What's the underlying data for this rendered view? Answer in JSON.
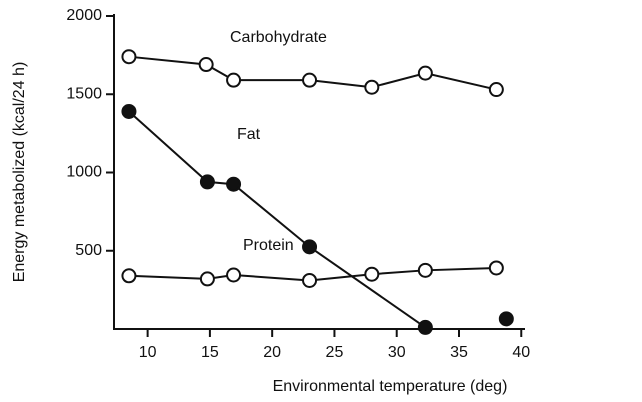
{
  "chart_data": {
    "type": "line",
    "xlabel": "Environmental temperature (deg)",
    "ylabel": "Energy metabolized (kcal/24 h)",
    "xlim": [
      7.3,
      40.3
    ],
    "xticks": [
      10,
      15,
      20,
      25,
      30,
      35,
      40
    ],
    "ylim": [
      0,
      2000
    ],
    "yticks": [
      500,
      1000,
      1500,
      2000
    ],
    "grid": false,
    "series": [
      {
        "name": "Carbohydrate",
        "color": "#111111",
        "marker_fill": "#ffffff",
        "x": [
          8.5,
          14.7,
          16.9,
          23,
          28,
          32.3,
          38
        ],
        "values": [
          1740,
          1690,
          1590,
          1590,
          1545,
          1635,
          1530
        ]
      },
      {
        "name": "Fat",
        "color": "#111111",
        "marker_fill": "#111111",
        "x": [
          8.5,
          14.8,
          16.9,
          23,
          32.3,
          null,
          38.8
        ],
        "values": [
          1390,
          940,
          925,
          525,
          10,
          null,
          65
        ]
      },
      {
        "name": "Protein",
        "color": "#111111",
        "marker_fill": "#ffffff",
        "x": [
          8.5,
          14.8,
          16.9,
          23,
          28,
          32.3,
          38
        ],
        "values": [
          340,
          320,
          345,
          310,
          350,
          375,
          390
        ]
      }
    ]
  }
}
